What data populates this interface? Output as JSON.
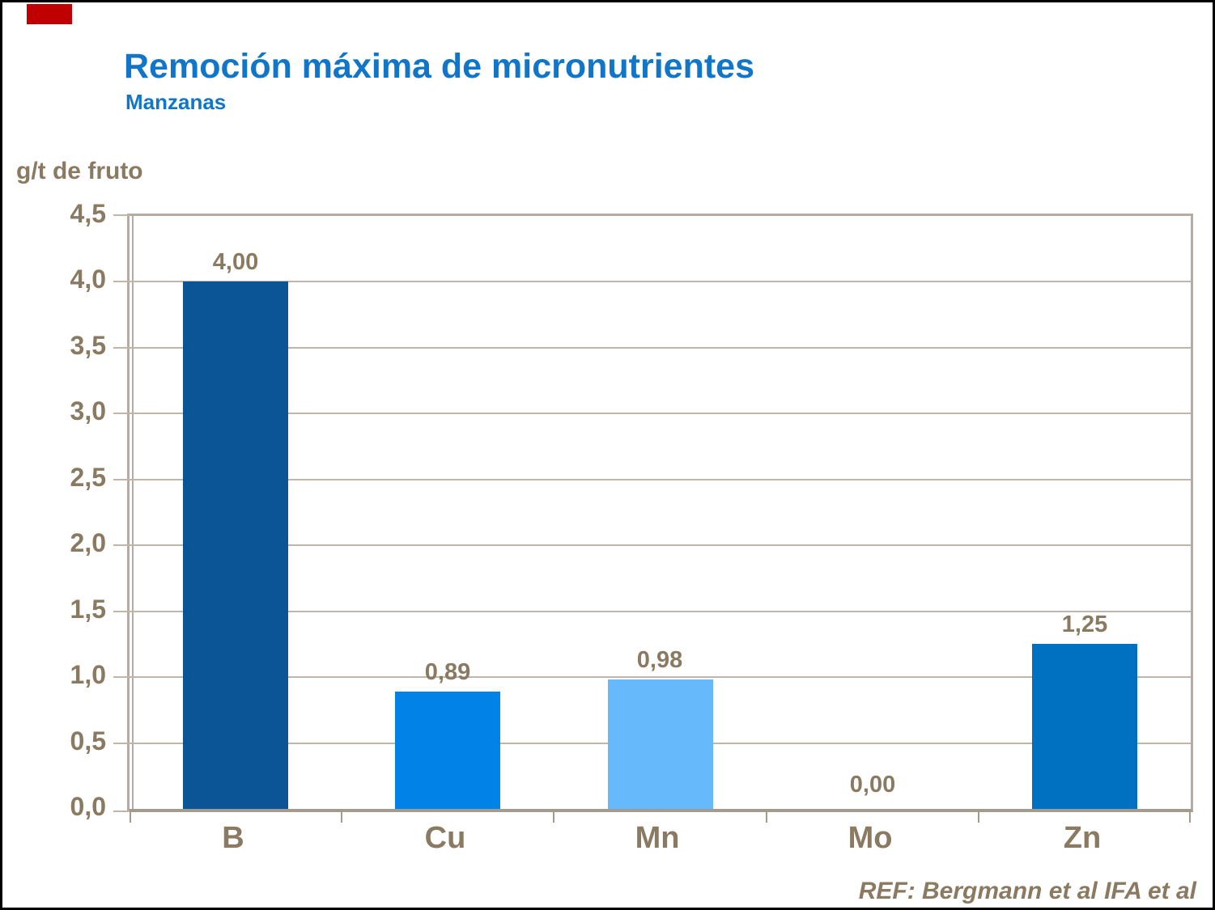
{
  "header": {
    "title": "Remoción máxima de micronutrientes",
    "subtitle": "Manzanas"
  },
  "axis": {
    "unit_label": "g/t de fruto"
  },
  "footer": {
    "reference": "REF: Bergmann et al IFA et al"
  },
  "colors": {
    "title_blue": "#1276C8",
    "axis_text_brown": "#8A7A62",
    "gridline": "#BFB5A9",
    "plot_border": "#B5ABA0",
    "baseline": "#A49A8E",
    "corner_marker_red": "#C00000",
    "bar_B": "#0B5596",
    "bar_Cu": "#0082E6",
    "bar_Mn": "#66BAFC",
    "bar_Zn": "#0071C1"
  },
  "chart_data": {
    "type": "bar",
    "title": "Remoción máxima de micronutrientes",
    "subtitle": "Manzanas",
    "ylabel": "g/t de fruto",
    "categories": [
      "B",
      "Cu",
      "Mn",
      "Mo",
      "Zn"
    ],
    "values": [
      4.0,
      0.89,
      0.98,
      0.0,
      1.25
    ],
    "value_labels": [
      "4,00",
      "0,89",
      "0,98",
      "0,00",
      "1,25"
    ],
    "bar_colors": [
      "#0B5596",
      "#0082E6",
      "#66BAFC",
      null,
      "#0071C1"
    ],
    "ylim": [
      0,
      4.5
    ],
    "ytick_step": 0.5,
    "ytick_labels": [
      "4,5",
      "4,0",
      "3,5",
      "3,0",
      "2,5",
      "2,0",
      "1,5",
      "1,0",
      "0,5",
      "0,0"
    ],
    "grid": true,
    "legend": false,
    "annotation": "REF: Bergmann et al IFA et al"
  }
}
